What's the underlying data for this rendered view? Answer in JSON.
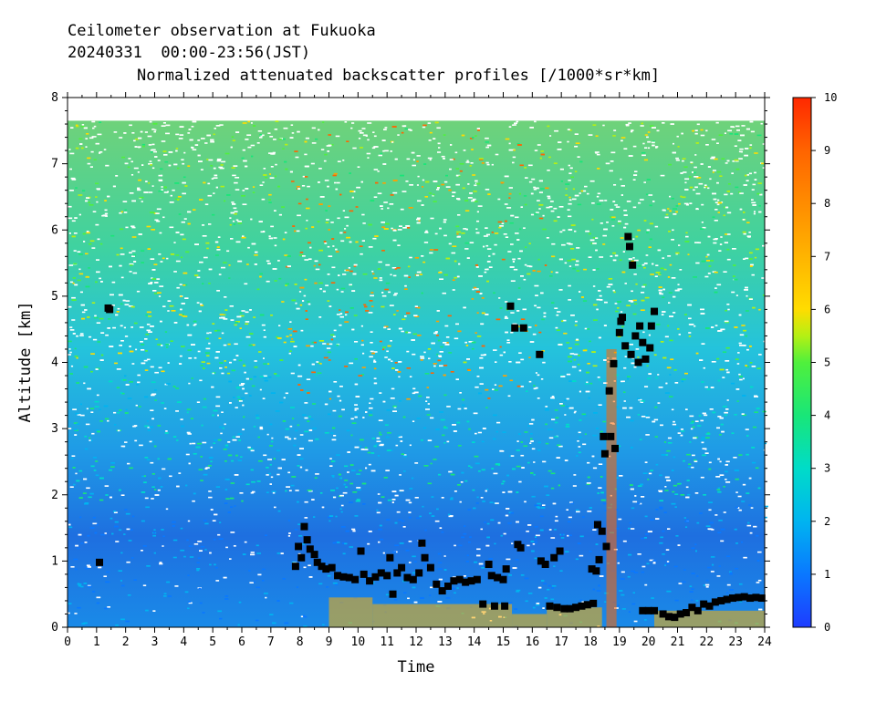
{
  "chart_data": {
    "type": "heatmap",
    "title": "Ceilometer observation at Fukuoka",
    "subtitle": "20240331  00:00-23:56(JST)",
    "product": "Normalized attenuated backscatter profiles [/1000*sr*km]",
    "xlabel": "Time",
    "ylabel": "Altitude [km]",
    "xlim": [
      0,
      24
    ],
    "ylim": [
      0,
      8
    ],
    "xticks": [
      "0",
      "1",
      "2",
      "3",
      "4",
      "5",
      "6",
      "7",
      "8",
      "9",
      "10",
      "11",
      "12",
      "13",
      "14",
      "15",
      "16",
      "17",
      "18",
      "19",
      "20",
      "21",
      "22",
      "23",
      "24"
    ],
    "yticks": [
      "0",
      "1",
      "2",
      "3",
      "4",
      "5",
      "6",
      "7",
      "8"
    ],
    "data_top_km": 7.65,
    "colorbar": {
      "range": [
        0,
        10
      ],
      "ticks": [
        "0",
        "1",
        "2",
        "3",
        "4",
        "5",
        "6",
        "7",
        "8",
        "9",
        "10"
      ],
      "colors": [
        "#1e3cff",
        "#0a78ff",
        "#00b4f0",
        "#00dcc8",
        "#19e678",
        "#50f03c",
        "#b4f014",
        "#ffdc00",
        "#ffa000",
        "#ff6400",
        "#ff2800"
      ]
    },
    "cloud_base_detections": [
      {
        "t": 1.1,
        "h": 0.98
      },
      {
        "t": 1.4,
        "h": 4.82
      },
      {
        "t": 1.45,
        "h": 4.8
      },
      {
        "t": 7.85,
        "h": 0.92
      },
      {
        "t": 7.95,
        "h": 1.22
      },
      {
        "t": 8.05,
        "h": 1.05
      },
      {
        "t": 8.15,
        "h": 1.52
      },
      {
        "t": 8.25,
        "h": 1.32
      },
      {
        "t": 8.35,
        "h": 1.18
      },
      {
        "t": 8.5,
        "h": 1.1
      },
      {
        "t": 8.6,
        "h": 0.98
      },
      {
        "t": 8.75,
        "h": 0.92
      },
      {
        "t": 8.9,
        "h": 0.88
      },
      {
        "t": 9.1,
        "h": 0.9
      },
      {
        "t": 9.3,
        "h": 0.78
      },
      {
        "t": 9.5,
        "h": 0.76
      },
      {
        "t": 9.7,
        "h": 0.75
      },
      {
        "t": 9.9,
        "h": 0.72
      },
      {
        "t": 10.1,
        "h": 1.15
      },
      {
        "t": 10.2,
        "h": 0.8
      },
      {
        "t": 10.4,
        "h": 0.7
      },
      {
        "t": 10.6,
        "h": 0.76
      },
      {
        "t": 10.8,
        "h": 0.82
      },
      {
        "t": 11.0,
        "h": 0.78
      },
      {
        "t": 11.1,
        "h": 1.05
      },
      {
        "t": 11.2,
        "h": 0.5
      },
      {
        "t": 11.35,
        "h": 0.82
      },
      {
        "t": 11.5,
        "h": 0.9
      },
      {
        "t": 11.7,
        "h": 0.75
      },
      {
        "t": 11.9,
        "h": 0.72
      },
      {
        "t": 12.1,
        "h": 0.82
      },
      {
        "t": 12.2,
        "h": 1.27
      },
      {
        "t": 12.3,
        "h": 1.05
      },
      {
        "t": 12.5,
        "h": 0.9
      },
      {
        "t": 12.7,
        "h": 0.65
      },
      {
        "t": 12.9,
        "h": 0.55
      },
      {
        "t": 13.1,
        "h": 0.62
      },
      {
        "t": 13.3,
        "h": 0.7
      },
      {
        "t": 13.5,
        "h": 0.72
      },
      {
        "t": 13.7,
        "h": 0.68
      },
      {
        "t": 13.9,
        "h": 0.7
      },
      {
        "t": 14.1,
        "h": 0.72
      },
      {
        "t": 14.3,
        "h": 0.35
      },
      {
        "t": 14.5,
        "h": 0.95
      },
      {
        "t": 14.6,
        "h": 0.78
      },
      {
        "t": 14.8,
        "h": 0.75
      },
      {
        "t": 15.0,
        "h": 0.72
      },
      {
        "t": 15.1,
        "h": 0.88
      },
      {
        "t": 14.7,
        "h": 0.32
      },
      {
        "t": 15.05,
        "h": 0.32
      },
      {
        "t": 15.25,
        "h": 4.85
      },
      {
        "t": 15.4,
        "h": 4.52
      },
      {
        "t": 15.5,
        "h": 1.25
      },
      {
        "t": 15.6,
        "h": 1.2
      },
      {
        "t": 15.7,
        "h": 4.52
      },
      {
        "t": 16.25,
        "h": 4.12
      },
      {
        "t": 16.3,
        "h": 1.0
      },
      {
        "t": 16.45,
        "h": 0.95
      },
      {
        "t": 16.6,
        "h": 0.32
      },
      {
        "t": 16.75,
        "h": 1.05
      },
      {
        "t": 16.85,
        "h": 0.3
      },
      {
        "t": 16.95,
        "h": 1.15
      },
      {
        "t": 17.1,
        "h": 0.28
      },
      {
        "t": 17.3,
        "h": 0.28
      },
      {
        "t": 17.5,
        "h": 0.3
      },
      {
        "t": 17.7,
        "h": 0.32
      },
      {
        "t": 17.9,
        "h": 0.34
      },
      {
        "t": 18.05,
        "h": 0.88
      },
      {
        "t": 18.1,
        "h": 0.36
      },
      {
        "t": 18.2,
        "h": 0.85
      },
      {
        "t": 18.25,
        "h": 1.55
      },
      {
        "t": 18.3,
        "h": 1.02
      },
      {
        "t": 18.4,
        "h": 1.45
      },
      {
        "t": 18.45,
        "h": 2.88
      },
      {
        "t": 18.5,
        "h": 2.62
      },
      {
        "t": 18.55,
        "h": 1.22
      },
      {
        "t": 18.65,
        "h": 3.57
      },
      {
        "t": 18.7,
        "h": 2.88
      },
      {
        "t": 18.8,
        "h": 3.98
      },
      {
        "t": 18.85,
        "h": 2.7
      },
      {
        "t": 19.0,
        "h": 4.45
      },
      {
        "t": 19.05,
        "h": 4.62
      },
      {
        "t": 19.1,
        "h": 4.68
      },
      {
        "t": 19.2,
        "h": 4.25
      },
      {
        "t": 19.3,
        "h": 5.9
      },
      {
        "t": 19.35,
        "h": 5.75
      },
      {
        "t": 19.45,
        "h": 5.47
      },
      {
        "t": 19.4,
        "h": 4.12
      },
      {
        "t": 19.55,
        "h": 4.4
      },
      {
        "t": 19.65,
        "h": 4.0
      },
      {
        "t": 19.7,
        "h": 4.55
      },
      {
        "t": 19.8,
        "h": 4.3
      },
      {
        "t": 19.9,
        "h": 4.05
      },
      {
        "t": 20.05,
        "h": 4.22
      },
      {
        "t": 20.1,
        "h": 4.55
      },
      {
        "t": 20.2,
        "h": 4.77
      },
      {
        "t": 19.8,
        "h": 0.25
      },
      {
        "t": 20.0,
        "h": 0.25
      },
      {
        "t": 20.2,
        "h": 0.25
      },
      {
        "t": 20.5,
        "h": 0.2
      },
      {
        "t": 20.7,
        "h": 0.16
      },
      {
        "t": 20.9,
        "h": 0.15
      },
      {
        "t": 21.1,
        "h": 0.2
      },
      {
        "t": 21.3,
        "h": 0.22
      },
      {
        "t": 21.5,
        "h": 0.3
      },
      {
        "t": 21.7,
        "h": 0.25
      },
      {
        "t": 21.9,
        "h": 0.35
      },
      {
        "t": 22.1,
        "h": 0.32
      },
      {
        "t": 22.3,
        "h": 0.38
      },
      {
        "t": 22.5,
        "h": 0.4
      },
      {
        "t": 22.7,
        "h": 0.42
      },
      {
        "t": 22.9,
        "h": 0.44
      },
      {
        "t": 23.1,
        "h": 0.45
      },
      {
        "t": 23.3,
        "h": 0.46
      },
      {
        "t": 23.5,
        "h": 0.44
      },
      {
        "t": 23.7,
        "h": 0.45
      },
      {
        "t": 23.9,
        "h": 0.44
      }
    ]
  }
}
